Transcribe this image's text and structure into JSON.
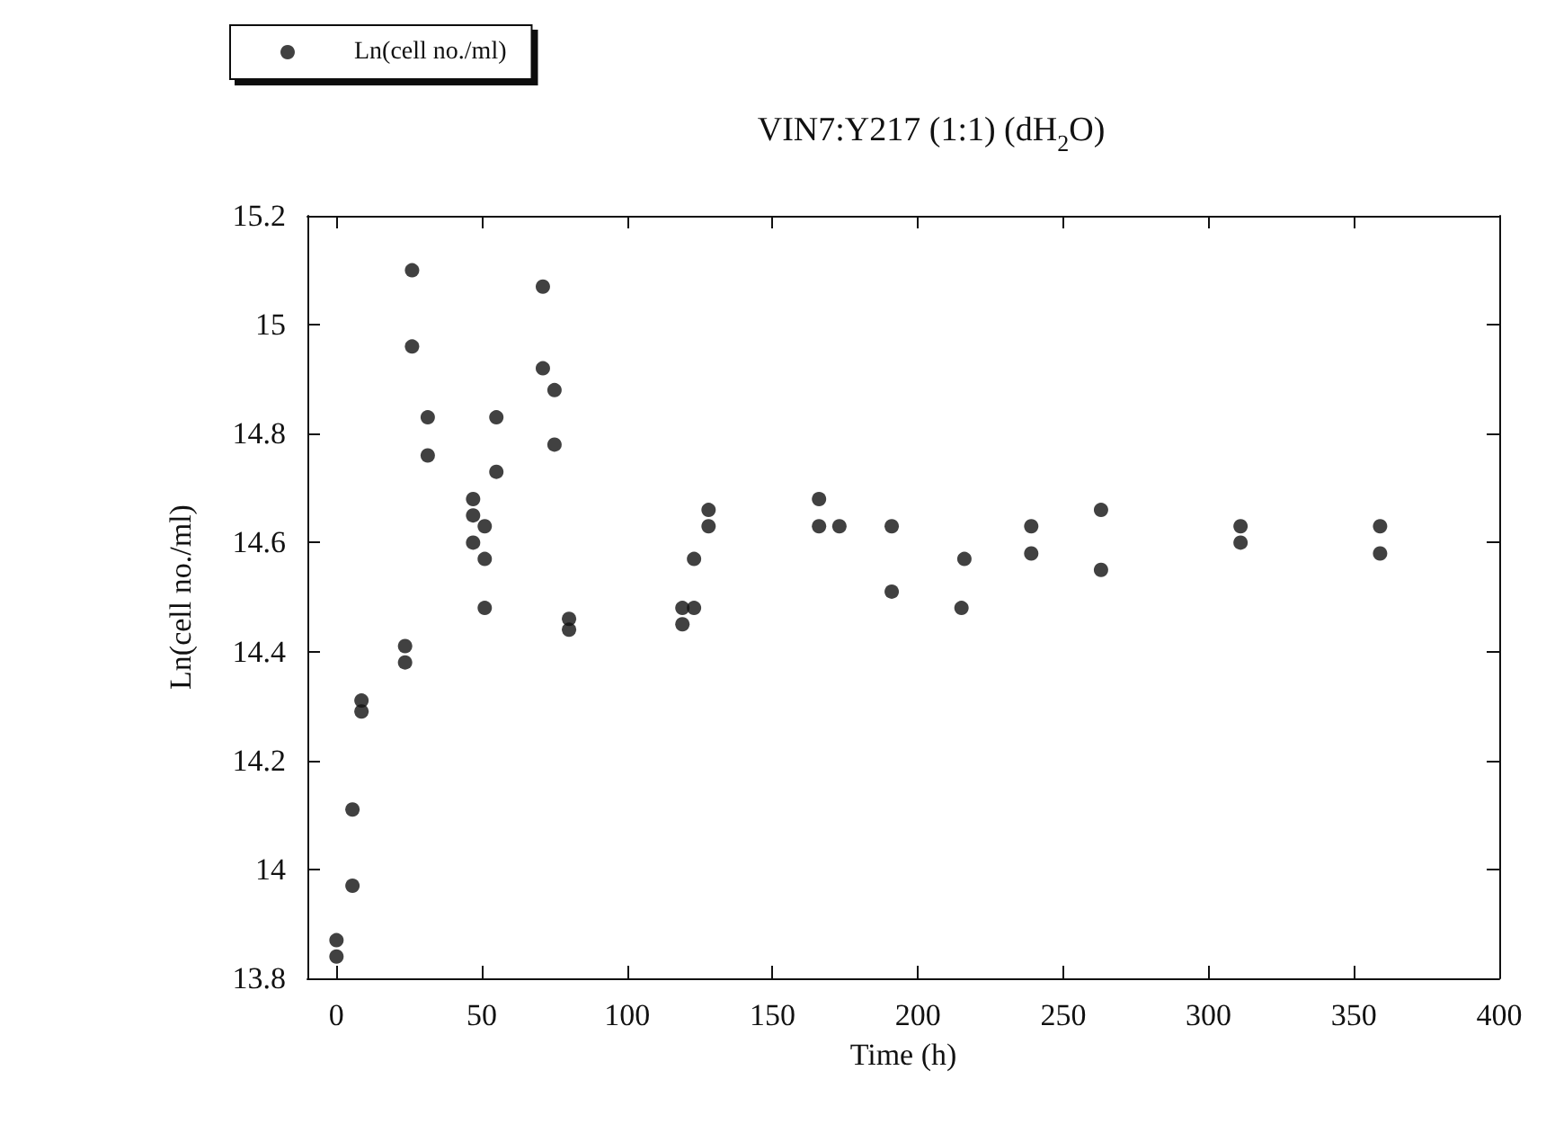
{
  "chart_data": {
    "type": "scatter",
    "title": "VIN7:Y217 (1:1) (dH$_{2}$O)",
    "xlabel": "Time (h)",
    "ylabel": "Ln(cell no./ml)",
    "series": [
      {
        "name": "Ln(cell no./ml)",
        "color": "#111111",
        "x": [
          0,
          0,
          5.5,
          5.5,
          8.6,
          8.6,
          23.6,
          23.6,
          26,
          26,
          31.4,
          31.4,
          47,
          47,
          47,
          51,
          51,
          51,
          55,
          55,
          71,
          71,
          75,
          75,
          80,
          80,
          119,
          119,
          123,
          123,
          128,
          128,
          166,
          166,
          173,
          191,
          191,
          215,
          216,
          239,
          239,
          263,
          263,
          311,
          311,
          359,
          359
        ],
        "values": [
          13.84,
          13.87,
          13.97,
          14.11,
          14.31,
          14.29,
          14.41,
          14.38,
          14.96,
          15.1,
          14.83,
          14.76,
          14.68,
          14.65,
          14.6,
          14.63,
          14.57,
          14.48,
          14.83,
          14.73,
          14.92,
          15.07,
          14.88,
          14.78,
          14.46,
          14.44,
          14.45,
          14.48,
          14.48,
          14.57,
          14.66,
          14.63,
          14.68,
          14.63,
          14.63,
          14.63,
          14.51,
          14.48,
          14.57,
          14.63,
          14.58,
          14.66,
          14.55,
          14.63,
          14.6,
          14.63,
          14.58
        ]
      }
    ],
    "xlim": [
      -10,
      400
    ],
    "xticks": [
      0,
      50,
      100,
      150,
      200,
      250,
      300,
      350,
      400
    ],
    "ylim": [
      13.8,
      15.2
    ],
    "yticks": [
      13.8,
      14,
      14.2,
      14.4,
      14.6,
      14.8,
      15,
      15.2
    ],
    "grid": false,
    "legend": "top left",
    "marker": "circle"
  }
}
